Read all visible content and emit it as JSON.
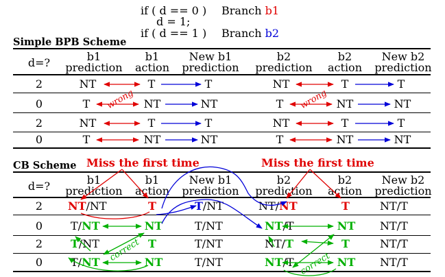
{
  "code": {
    "line1": "if ( d == 0 )",
    "line2": "d = 1;",
    "line3": "if ( d == 1 )",
    "branch_label": "Branch",
    "branch1": "b1",
    "branch2": "b2"
  },
  "simple": {
    "title": "Simple BPB Scheme",
    "headers": {
      "d": "d=?",
      "b1_pred_1": "b1",
      "b1_pred_2": "prediction",
      "b1_act_1": "b1",
      "b1_act_2": "action",
      "b1_new_1": "New b1",
      "b1_new_2": "prediction",
      "b2_pred_1": "b2",
      "b2_pred_2": "prediction",
      "b2_act_1": "b2",
      "b2_act_2": "action",
      "b2_new_1": "New b2",
      "b2_new_2": "prediction"
    },
    "rows": [
      {
        "d": "2",
        "b1_pred": "NT",
        "b1_act": "T",
        "b1_new": "T",
        "b2_pred": "NT",
        "b2_act": "T",
        "b2_new": "T"
      },
      {
        "d": "0",
        "b1_pred": "T",
        "b1_act": "NT",
        "b1_new": "NT",
        "b2_pred": "T",
        "b2_act": "NT",
        "b2_new": "NT"
      },
      {
        "d": "2",
        "b1_pred": "NT",
        "b1_act": "T",
        "b1_new": "T",
        "b2_pred": "NT",
        "b2_act": "T",
        "b2_new": "T"
      },
      {
        "d": "0",
        "b1_pred": "T",
        "b1_act": "NT",
        "b1_new": "NT",
        "b2_pred": "T",
        "b2_act": "NT",
        "b2_new": "NT"
      }
    ],
    "wrong_label": "wrong"
  },
  "cb": {
    "title": "CB Scheme",
    "miss_label": "Miss the first time",
    "headers": {
      "d": "d=?",
      "b1_pred_1": "b1",
      "b1_pred_2": "prediction",
      "b1_act_1": "b1",
      "b1_act_2": "action",
      "b1_new_1": "New b1",
      "b1_new_2": "prediction",
      "b2_pred_1": "b2",
      "b2_pred_2": "prediction",
      "b2_act_1": "b2",
      "b2_act_2": "action",
      "b2_new_1": "New b2",
      "b2_new_2": "prediction"
    },
    "rows": [
      {
        "d": "2",
        "b1_pred_a": "NT",
        "b1_pred_b": "NT",
        "b1_act": "T",
        "b1_new_a": "T",
        "b1_new_b": "NT",
        "b2_pred_a": "NT",
        "b2_pred_b": "NT",
        "b2_act": "T",
        "b2_new_a": "NT",
        "b2_new_b": "T"
      },
      {
        "d": "0",
        "b1_pred_a": "T",
        "b1_pred_b": "NT",
        "b1_act": "NT",
        "b1_new_a": "T",
        "b1_new_b": "NT",
        "b2_pred_a": "NT",
        "b2_pred_b": "T",
        "b2_act": "NT",
        "b2_new_a": "NT",
        "b2_new_b": "T"
      },
      {
        "d": "2",
        "b1_pred_a": "T",
        "b1_pred_b": "NT",
        "b1_act": "T",
        "b1_new_a": "T",
        "b1_new_b": "NT",
        "b2_pred_a": "NT",
        "b2_pred_b": "T",
        "b2_act": "T",
        "b2_new_a": "NT",
        "b2_new_b": "T"
      },
      {
        "d": "0",
        "b1_pred_a": "T",
        "b1_pred_b": "NT",
        "b1_act": "NT",
        "b1_new_a": "T",
        "b1_new_b": "NT",
        "b2_pred_a": "NT",
        "b2_pred_b": "T",
        "b2_act": "NT",
        "b2_new_a": "NT",
        "b2_new_b": "T"
      }
    ],
    "correct_label": "correct"
  },
  "colors": {
    "red": "#e00000",
    "blue": "#0000d8",
    "green": "#00b000"
  }
}
